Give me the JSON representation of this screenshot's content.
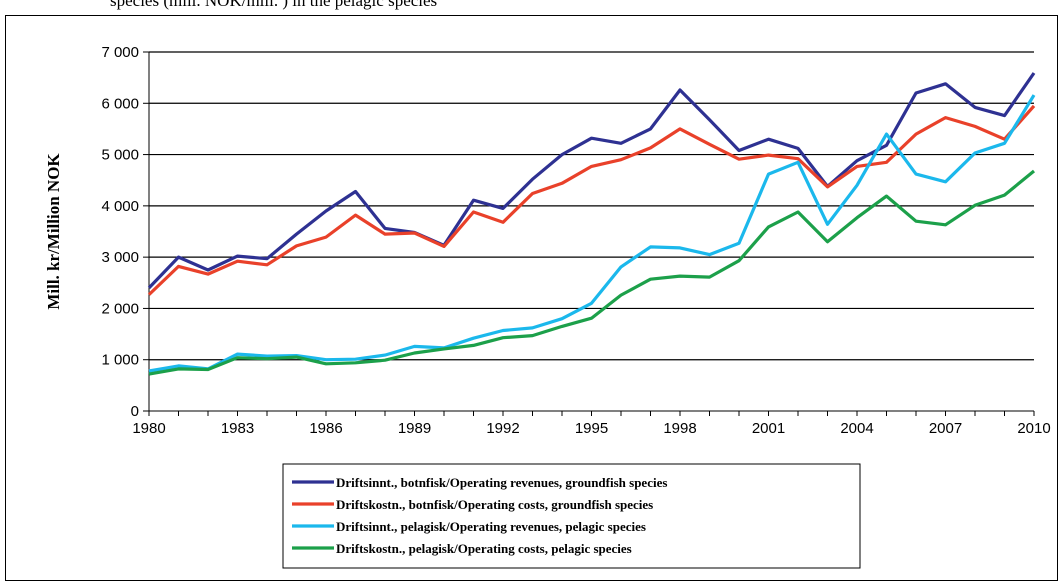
{
  "header_text": "species (mill. NOK/mill. ) in the pelagic species",
  "chart_data": {
    "type": "line",
    "title": "",
    "xlabel": "",
    "ylabel": "Mill. kr/Million NOK",
    "xlim": [
      1980,
      2010
    ],
    "ylim": [
      0,
      7000
    ],
    "x_ticks": [
      "1980",
      "1983",
      "1986",
      "1989",
      "1992",
      "1995",
      "1998",
      "2001",
      "2004",
      "2007",
      "2010"
    ],
    "y_ticks": [
      "0",
      "1 000",
      "2 000",
      "3 000",
      "4 000",
      "5 000",
      "6 000",
      "7 000"
    ],
    "grid": true,
    "legend_position": "bottom",
    "x": [
      1980,
      1981,
      1982,
      1983,
      1984,
      1985,
      1986,
      1987,
      1988,
      1989,
      1990,
      1991,
      1992,
      1993,
      1994,
      1995,
      1996,
      1997,
      1998,
      1999,
      2000,
      2001,
      2002,
      2003,
      2004,
      2005,
      2006,
      2007,
      2008,
      2009,
      2010
    ],
    "series": [
      {
        "name": "Driftsinnt., botnfisk/Operating revenues, groundfish species",
        "color": "#2e3192",
        "values": [
          2400,
          3000,
          2750,
          3020,
          2970,
          3450,
          3900,
          4280,
          3560,
          3480,
          3230,
          4110,
          3950,
          4520,
          5000,
          5320,
          5220,
          5500,
          6260,
          5680,
          5080,
          5300,
          5120,
          4380,
          4880,
          5180,
          6200,
          6380,
          5920,
          5760,
          6590
        ]
      },
      {
        "name": "Driftskostn., botnfisk/Operating costs, groundfish species",
        "color": "#e9412a",
        "values": [
          2270,
          2820,
          2670,
          2920,
          2850,
          3220,
          3390,
          3820,
          3450,
          3470,
          3210,
          3880,
          3680,
          4240,
          4440,
          4770,
          4900,
          5130,
          5500,
          5200,
          4910,
          4990,
          4920,
          4370,
          4770,
          4850,
          5400,
          5720,
          5550,
          5300,
          5950
        ]
      },
      {
        "name": "Driftsinnt., pelagisk/Operating revenues, pelagic species",
        "color": "#1bb8ec",
        "values": [
          780,
          880,
          820,
          1110,
          1070,
          1080,
          1000,
          1010,
          1090,
          1260,
          1230,
          1420,
          1570,
          1620,
          1800,
          2100,
          2810,
          3200,
          3180,
          3050,
          3270,
          4620,
          4850,
          3640,
          4400,
          5400,
          4620,
          4470,
          5030,
          5220,
          6160
        ]
      },
      {
        "name": "Driftskostn., pelagisk/Operating costs, pelagic species",
        "color": "#1ca04a",
        "values": [
          720,
          820,
          810,
          1040,
          1020,
          1050,
          920,
          940,
          990,
          1130,
          1210,
          1280,
          1430,
          1470,
          1650,
          1810,
          2260,
          2570,
          2630,
          2610,
          2930,
          3590,
          3880,
          3300,
          3770,
          4190,
          3700,
          3630,
          4010,
          4210,
          4680
        ]
      }
    ]
  }
}
